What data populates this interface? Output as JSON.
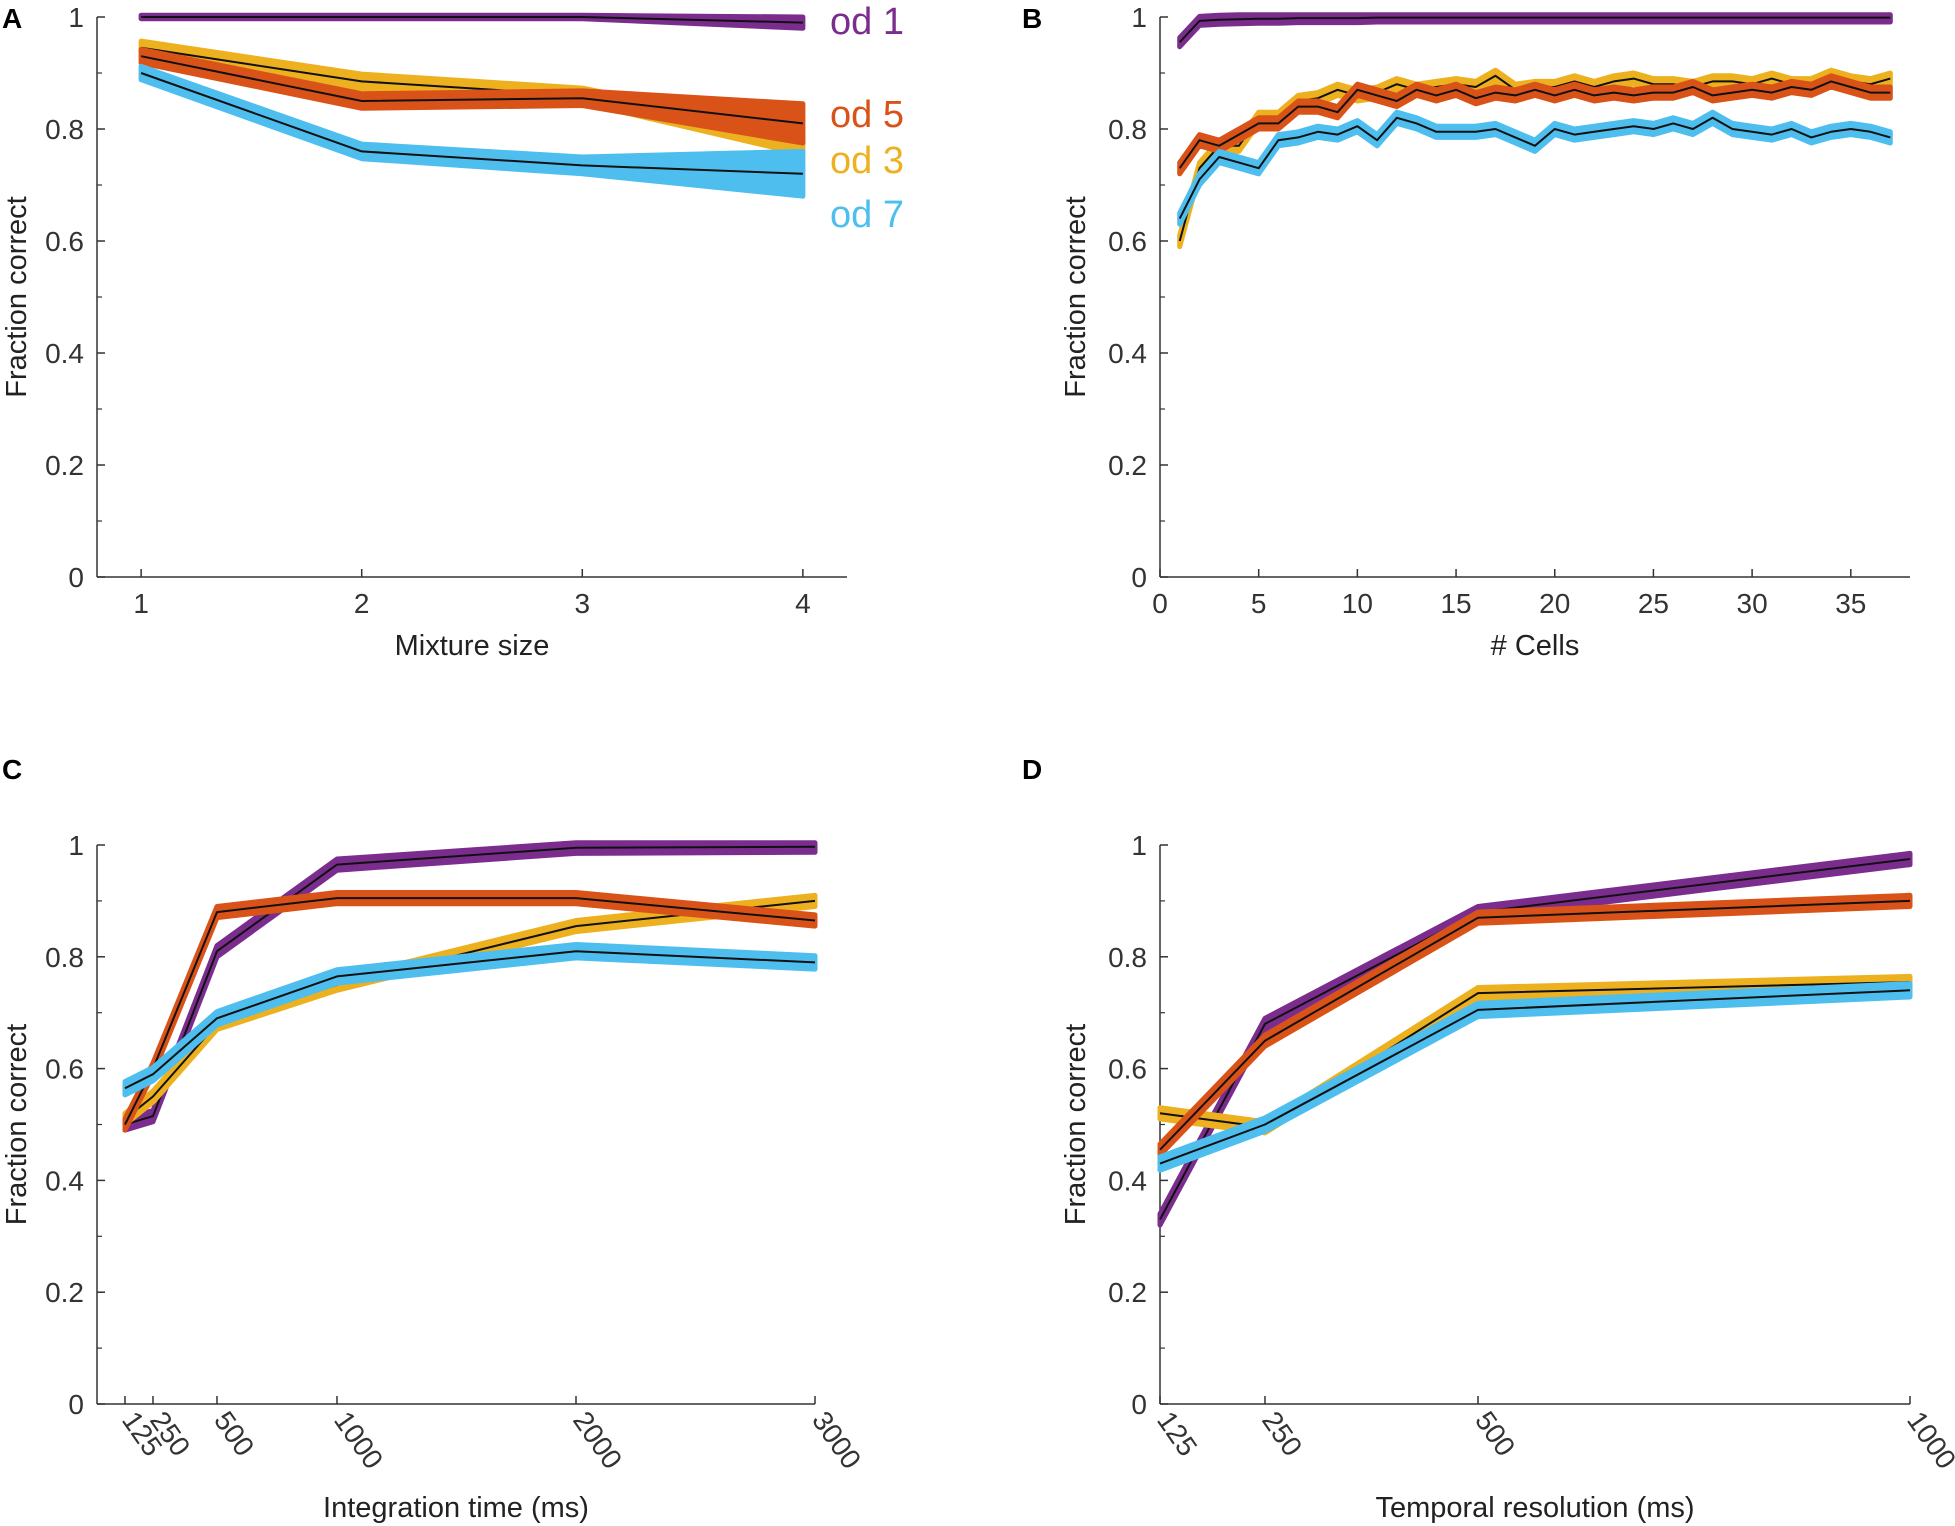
{
  "figure": {
    "panels": [
      "A",
      "B",
      "C",
      "D"
    ]
  },
  "chart_data": [
    {
      "panel": "A",
      "type": "line",
      "title": "",
      "xlabel": "Mixture size",
      "ylabel": "Fraction correct",
      "xlim": [
        0.8,
        4.2
      ],
      "ylim": [
        0,
        1
      ],
      "x": [
        1,
        2,
        3,
        4
      ],
      "xticks": [
        1,
        2,
        3,
        4
      ],
      "xtick_labels": [
        "1",
        "2",
        "3",
        "4"
      ],
      "yticks": [
        0,
        0.2,
        0.4,
        0.6,
        0.8,
        1
      ],
      "ytick_labels": [
        "0",
        "0.2",
        "0.4",
        "0.6",
        "0.8",
        "1"
      ],
      "legend": [
        {
          "label": "od 1",
          "color": "#7B2D8E"
        },
        {
          "label": "od 5",
          "color": "#D95319"
        },
        {
          "label": "od 3",
          "color": "#EDB120"
        },
        {
          "label": "od 7",
          "color": "#4DBEEE"
        }
      ],
      "series": [
        {
          "name": "od 1",
          "color": "#7B2D8E",
          "values": [
            1.0,
            1.0,
            1.0,
            0.99
          ],
          "band": [
            0.003,
            0.003,
            0.003,
            0.01
          ]
        },
        {
          "name": "od 3",
          "color": "#EDB120",
          "values": [
            0.945,
            0.885,
            0.86,
            0.775
          ],
          "band": [
            0.012,
            0.013,
            0.013,
            0.02
          ]
        },
        {
          "name": "od 5",
          "color": "#D95319",
          "values": [
            0.93,
            0.85,
            0.855,
            0.81
          ],
          "band": [
            0.012,
            0.013,
            0.013,
            0.035
          ]
        },
        {
          "name": "od 7",
          "color": "#4DBEEE",
          "values": [
            0.9,
            0.76,
            0.735,
            0.72
          ],
          "band": [
            0.012,
            0.013,
            0.015,
            0.04
          ]
        }
      ]
    },
    {
      "panel": "B",
      "type": "line",
      "title": "",
      "xlabel": "# Cells",
      "ylabel": "Fraction correct",
      "xlim": [
        0,
        38
      ],
      "ylim": [
        0,
        1
      ],
      "x": [
        1,
        2,
        3,
        4,
        5,
        6,
        7,
        8,
        9,
        10,
        11,
        12,
        13,
        14,
        15,
        16,
        17,
        18,
        19,
        20,
        21,
        22,
        23,
        24,
        25,
        26,
        27,
        28,
        29,
        30,
        31,
        32,
        33,
        34,
        35,
        36,
        37
      ],
      "xticks": [
        0,
        5,
        10,
        15,
        20,
        25,
        30,
        35
      ],
      "xtick_labels": [
        "0",
        "5",
        "10",
        "15",
        "20",
        "25",
        "30",
        "35"
      ],
      "yticks": [
        0,
        0.2,
        0.4,
        0.6,
        0.8,
        1
      ],
      "ytick_labels": [
        "0",
        "0.2",
        "0.4",
        "0.6",
        "0.8",
        "1"
      ],
      "series": [
        {
          "name": "od 1",
          "color": "#7B2D8E",
          "values": [
            0.955,
            0.993,
            0.995,
            0.996,
            0.997,
            0.997,
            0.998,
            0.998,
            0.998,
            0.998,
            0.999,
            0.999,
            0.999,
            0.999,
            0.999,
            0.999,
            0.999,
            0.999,
            0.999,
            0.999,
            0.999,
            0.999,
            0.999,
            0.999,
            0.999,
            0.999,
            0.999,
            0.999,
            0.999,
            0.999,
            0.999,
            0.999,
            0.999,
            0.999,
            0.999,
            0.999,
            0.999
          ],
          "band": 0.008
        },
        {
          "name": "od 3",
          "color": "#EDB120",
          "values": [
            0.6,
            0.73,
            0.77,
            0.77,
            0.82,
            0.82,
            0.85,
            0.855,
            0.87,
            0.86,
            0.865,
            0.88,
            0.87,
            0.875,
            0.88,
            0.875,
            0.895,
            0.87,
            0.875,
            0.875,
            0.885,
            0.875,
            0.885,
            0.89,
            0.88,
            0.88,
            0.875,
            0.885,
            0.885,
            0.88,
            0.89,
            0.88,
            0.88,
            0.895,
            0.885,
            0.88,
            0.89
          ],
          "band": 0.01
        },
        {
          "name": "od 5",
          "color": "#D95319",
          "values": [
            0.73,
            0.78,
            0.77,
            0.79,
            0.81,
            0.81,
            0.84,
            0.84,
            0.83,
            0.87,
            0.86,
            0.85,
            0.87,
            0.86,
            0.87,
            0.855,
            0.865,
            0.86,
            0.87,
            0.86,
            0.87,
            0.86,
            0.865,
            0.86,
            0.865,
            0.865,
            0.875,
            0.86,
            0.865,
            0.87,
            0.865,
            0.875,
            0.87,
            0.885,
            0.875,
            0.865,
            0.865
          ],
          "band": 0.01
        },
        {
          "name": "od 7",
          "color": "#4DBEEE",
          "values": [
            0.64,
            0.71,
            0.75,
            0.74,
            0.73,
            0.78,
            0.785,
            0.795,
            0.79,
            0.805,
            0.78,
            0.82,
            0.81,
            0.795,
            0.795,
            0.795,
            0.8,
            0.785,
            0.77,
            0.8,
            0.79,
            0.795,
            0.8,
            0.805,
            0.8,
            0.81,
            0.8,
            0.82,
            0.8,
            0.795,
            0.79,
            0.8,
            0.785,
            0.795,
            0.8,
            0.795,
            0.785
          ],
          "band": 0.01
        }
      ]
    },
    {
      "panel": "C",
      "type": "line",
      "title": "",
      "xlabel": "Integration time (ms)",
      "ylabel": "Fraction correct",
      "xlim": [
        60,
        3000
      ],
      "ylim": [
        0,
        1
      ],
      "x": [
        125,
        250,
        500,
        1000,
        2000,
        3000
      ],
      "xticks": [
        125,
        250,
        500,
        1000,
        2000,
        3000
      ],
      "xtick_labels": [
        "125",
        "250",
        "500",
        "1000",
        "2000",
        "3000"
      ],
      "yticks": [
        0,
        0.2,
        0.4,
        0.6,
        0.8,
        1
      ],
      "ytick_labels": [
        "0",
        "0.2",
        "0.4",
        "0.6",
        "0.8",
        "1"
      ],
      "series": [
        {
          "name": "od 1",
          "color": "#7B2D8E",
          "values": [
            0.5,
            0.515,
            0.81,
            0.965,
            0.995,
            0.997
          ],
          "band": 0.01
        },
        {
          "name": "od 3",
          "color": "#EDB120",
          "values": [
            0.51,
            0.55,
            0.68,
            0.75,
            0.855,
            0.9
          ],
          "band": 0.01
        },
        {
          "name": "od 5",
          "color": "#D95319",
          "values": [
            0.5,
            0.6,
            0.88,
            0.905,
            0.905,
            0.865
          ],
          "band": 0.01
        },
        {
          "name": "od 7",
          "color": "#4DBEEE",
          "values": [
            0.565,
            0.59,
            0.69,
            0.765,
            0.81,
            0.79
          ],
          "band": 0.012
        }
      ]
    },
    {
      "panel": "D",
      "type": "line",
      "title": "",
      "xlabel": "Temporal resolution (ms)",
      "ylabel": "Fraction correct",
      "xlim": [
        125,
        1000
      ],
      "ylim": [
        0,
        1
      ],
      "x": [
        125,
        250,
        500,
        1000
      ],
      "xticks": [
        125,
        250,
        500,
        1000
      ],
      "xtick_labels": [
        "125",
        "250",
        "500",
        "1000"
      ],
      "yticks": [
        0,
        0.2,
        0.4,
        0.6,
        0.8,
        1
      ],
      "ytick_labels": [
        "0",
        "0.2",
        "0.4",
        "0.6",
        "0.8",
        "1"
      ],
      "series": [
        {
          "name": "od 1",
          "color": "#7B2D8E",
          "values": [
            0.33,
            0.68,
            0.88,
            0.975
          ],
          "band": 0.01
        },
        {
          "name": "od 3",
          "color": "#EDB120",
          "values": [
            0.52,
            0.495,
            0.735,
            0.755
          ],
          "band": 0.01
        },
        {
          "name": "od 5",
          "color": "#D95319",
          "values": [
            0.455,
            0.65,
            0.87,
            0.9
          ],
          "band": 0.01
        },
        {
          "name": "od 7",
          "color": "#4DBEEE",
          "values": [
            0.43,
            0.5,
            0.705,
            0.74
          ],
          "band": 0.012
        }
      ]
    }
  ]
}
